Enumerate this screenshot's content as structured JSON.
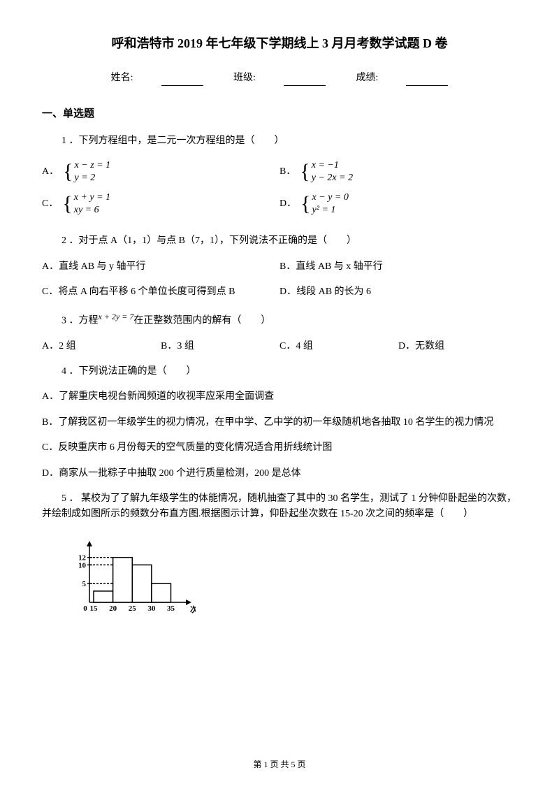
{
  "title": "呼和浩特市 2019 年七年级下学期线上 3 月月考数学试题 D 卷",
  "header": {
    "name_label": "姓名:",
    "class_label": "班级:",
    "score_label": "成绩:"
  },
  "section1": {
    "title": "一、单选题",
    "q1": {
      "stem": "1 ．下列方程组中，是二元一次方程组的是（　　）",
      "opts": {
        "A": {
          "line1": "x − z = 1",
          "line2": "y = 2"
        },
        "B": {
          "line1": "x = −1",
          "line2": "y − 2x = 2"
        },
        "C": {
          "line1": "x + y = 1",
          "line2": "xy = 6"
        },
        "D": {
          "line1": "x − y = 0",
          "line2": "y² = 1"
        }
      }
    },
    "q2": {
      "stem": "2 ．对于点 A（1，1）与点 B（7，1），下列说法不正确的是（　　）",
      "a": "A．直线 AB 与 y 轴平行",
      "b": "B．直线 AB 与 x 轴平行",
      "c": "C．将点 A 向右平移 6 个单位长度可得到点 B",
      "d": "D．线段 AB 的长为 6"
    },
    "q3": {
      "stem_pre": "3 ．方程",
      "eq": "x + 2y = 7",
      "stem_post": "在正整数范围内的解有（　　）",
      "a": "A．2 组",
      "b": "B．3 组",
      "c": "C．4 组",
      "d": "D．无数组"
    },
    "q4": {
      "stem": "4 ．下列说法正确的是（　　）",
      "a": "A．了解重庆电视台新闻频道的收视率应采用全面调查",
      "b": "B．了解我区初一年级学生的视力情况，在甲中学、乙中学的初一年级随机地各抽取 10 名学生的视力情况",
      "c": "C．反映重庆市 6 月份每天的空气质量的变化情况适合用折线统计图",
      "d": "D．商家从一批粽子中抽取 200 个进行质量检测，200 是总体"
    },
    "q5": {
      "stem": "5 ． 某校为了了解九年级学生的体能情况，随机抽查了其中的 30 名学生，测试了 1 分钟仰卧起坐的次数，并绘制成如图所示的频数分布直方图.根据图示计算，仰卧起坐次数在 15-20 次之间的频率是（　　）"
    }
  },
  "chart": {
    "type": "histogram",
    "x_ticks": [
      "0",
      "15",
      "20",
      "25",
      "30",
      "35"
    ],
    "y_ticks": [
      "12",
      "10",
      "5"
    ],
    "x_label": "次",
    "bars": [
      {
        "x_start": 15,
        "x_end": 20,
        "height": 3
      },
      {
        "x_start": 20,
        "x_end": 25,
        "height": 12
      },
      {
        "x_start": 25,
        "x_end": 30,
        "height": 10
      },
      {
        "x_start": 30,
        "x_end": 35,
        "height": 5
      }
    ],
    "y_max": 14,
    "y_guide_lines": [
      12,
      10,
      5
    ],
    "colors": {
      "axis": "#000000",
      "bar_fill": "#ffffff",
      "bar_stroke": "#000000",
      "guide": "#000000",
      "background": "#ffffff"
    },
    "line_width": 1.5,
    "font_size": 11
  },
  "footer": "第 1 页 共 5 页"
}
